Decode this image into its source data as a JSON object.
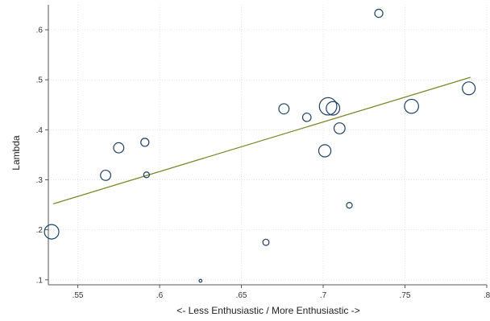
{
  "chart_data": {
    "type": "scatter",
    "title": "",
    "xlabel": "<- Less Enthusiastic / More Enthusiastic ->",
    "ylabel": "Lambda",
    "xlim": [
      0.532,
      0.8
    ],
    "ylim": [
      0.09,
      0.65
    ],
    "x_ticks": [
      0.55,
      0.6,
      0.65,
      0.7,
      0.75,
      0.8
    ],
    "x_tick_labels": [
      ".55",
      ".6",
      ".65",
      ".7",
      ".75",
      ".8"
    ],
    "y_ticks": [
      0.1,
      0.2,
      0.3,
      0.4,
      0.5,
      0.6
    ],
    "y_tick_labels": [
      ".1",
      ".2",
      ".3",
      ".4",
      ".5",
      ".6"
    ],
    "grid": true,
    "legend": "none",
    "colors": {
      "marker": "#1f3f63",
      "fit_line": "#7a8a2a",
      "label": "#5a7a9a"
    },
    "fit_line": {
      "x": [
        0.535,
        0.79
      ],
      "y": [
        0.252,
        0.505
      ]
    },
    "points": [
      {
        "label": "",
        "x": 0.734,
        "y": 0.633,
        "size": 1.2
      },
      {
        "label": "",
        "x": 0.789,
        "y": 0.483,
        "size": 3
      },
      {
        "label": "",
        "x": 0.754,
        "y": 0.447,
        "size": 3.6
      },
      {
        "label": "",
        "x": 0.703,
        "y": 0.447,
        "size": 5.5
      },
      {
        "label": "",
        "x": 0.706,
        "y": 0.443,
        "size": 3.3
      },
      {
        "label": "",
        "x": 0.676,
        "y": 0.442,
        "size": 1.9
      },
      {
        "label": "",
        "x": 0.69,
        "y": 0.425,
        "size": 1.3
      },
      {
        "label": "",
        "x": 0.71,
        "y": 0.403,
        "size": 2.2
      },
      {
        "label": "",
        "x": 0.701,
        "y": 0.358,
        "size": 2.7
      },
      {
        "label": "",
        "x": 0.575,
        "y": 0.364,
        "size": 1.9
      },
      {
        "label": "",
        "x": 0.591,
        "y": 0.375,
        "size": 1.2
      },
      {
        "label": "",
        "x": 0.567,
        "y": 0.309,
        "size": 1.9
      },
      {
        "label": "",
        "x": 0.592,
        "y": 0.31,
        "size": 0.6
      },
      {
        "label": "",
        "x": 0.716,
        "y": 0.249,
        "size": 0.6
      },
      {
        "label": "",
        "x": 0.534,
        "y": 0.196,
        "size": 3.8
      },
      {
        "label": "",
        "x": 0.665,
        "y": 0.175,
        "size": 0.7
      },
      {
        "label": "",
        "x": 0.625,
        "y": 0.098,
        "size": 0.05
      }
    ]
  }
}
